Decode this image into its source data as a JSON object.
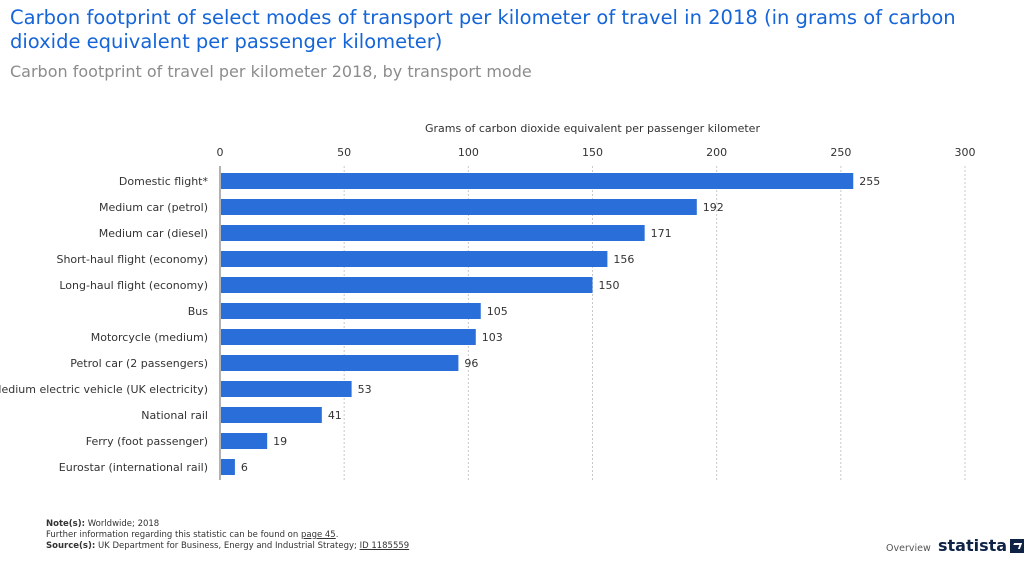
{
  "header": {
    "title": "Carbon footprint of select modes of transport per kilometer of travel in 2018 (in grams of carbon dioxide equivalent per passenger kilometer)",
    "subtitle": "Carbon footprint of travel per kilometer 2018, by transport mode"
  },
  "chart_data": {
    "type": "bar",
    "orientation": "horizontal",
    "xlabel": "Grams of carbon dioxide equivalent per passenger kilometer",
    "xlim": [
      0,
      300
    ],
    "xticks": [
      0,
      50,
      100,
      150,
      200,
      250,
      300
    ],
    "grid": "vertical dotted",
    "bar_color": "#2a6ed9",
    "categories": [
      "Domestic flight*",
      "Medium car (petrol)",
      "Medium car (diesel)",
      "Short-haul flight (economy)",
      "Long-haul flight (economy)",
      "Bus",
      "Motorcycle (medium)",
      "Petrol car (2 passengers)",
      "Medium electric vehicle (UK electricity)",
      "National rail",
      "Ferry (foot passenger)",
      "Eurostar (international rail)"
    ],
    "values": [
      255,
      192,
      171,
      156,
      150,
      105,
      103,
      96,
      53,
      41,
      19,
      6
    ]
  },
  "footer": {
    "notes_label": "Note(s):",
    "notes_text": "Worldwide; 2018",
    "info_text": "Further information regarding this statistic can be found on",
    "info_link": "page 45",
    "info_end": ".",
    "source_label": "Source(s):",
    "source_text": "UK Department for Business, Energy and Industrial Strategy;",
    "source_id": "ID 1185559",
    "overview": "Overview",
    "brand": "statista"
  },
  "colors": {
    "title": "#1565d8",
    "subtitle": "#8c8c8c",
    "bar": "#2a6ed9"
  }
}
